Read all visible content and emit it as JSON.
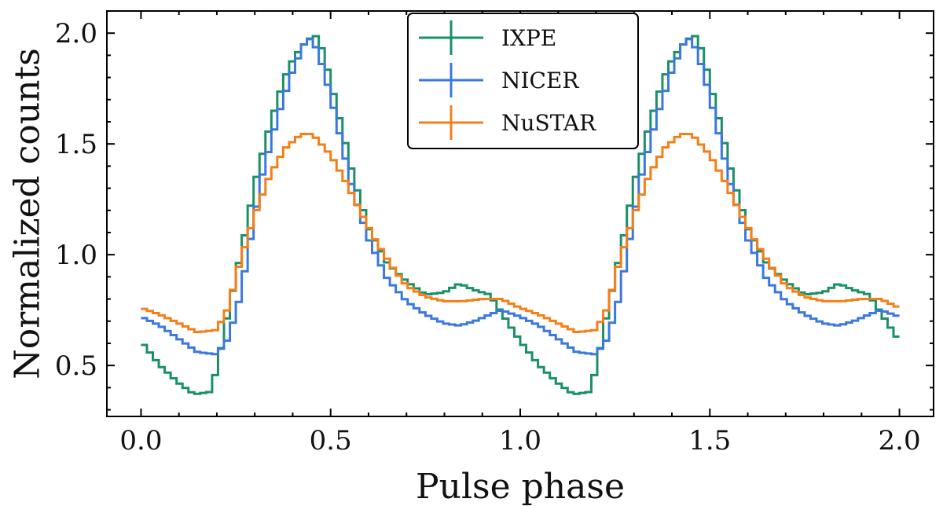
{
  "chart_data": {
    "type": "line",
    "drawstyle": "steps",
    "xlabel": "Pulse phase",
    "ylabel": "Normalized counts",
    "xlim": [
      -0.09,
      2.09
    ],
    "ylim": [
      0.27,
      2.1
    ],
    "xticks": [
      0.0,
      0.5,
      1.0,
      1.5,
      2.0
    ],
    "xtick_labels": [
      "0.0",
      "0.5",
      "1.0",
      "1.5",
      "2.0"
    ],
    "yticks": [
      0.5,
      1.0,
      1.5,
      2.0
    ],
    "ytick_labels": [
      "0.5",
      "1.0",
      "1.5",
      "2.0"
    ],
    "grid": false,
    "legend_position": "top-center",
    "period": 1.0,
    "x_start": 0.0,
    "x_end": 2.0,
    "bins_per_period": 64,
    "series": [
      {
        "name": "IXPE",
        "color": "#1a9068",
        "phase": [
          0.0,
          0.05,
          0.1,
          0.14,
          0.18,
          0.2,
          0.22,
          0.25,
          0.28,
          0.3,
          0.33,
          0.36,
          0.39,
          0.42,
          0.44,
          0.46,
          0.48,
          0.5,
          0.53,
          0.56,
          0.6,
          0.65,
          0.7,
          0.75,
          0.8,
          0.84,
          0.88,
          0.92,
          0.95,
          1.0
        ],
        "counts": [
          0.61,
          0.5,
          0.42,
          0.37,
          0.38,
          0.48,
          0.66,
          0.9,
          1.14,
          1.32,
          1.52,
          1.7,
          1.85,
          1.93,
          1.97,
          1.99,
          1.92,
          1.78,
          1.57,
          1.35,
          1.12,
          0.96,
          0.88,
          0.82,
          0.83,
          0.87,
          0.84,
          0.82,
          0.74,
          0.61
        ]
      },
      {
        "name": "NICER",
        "color": "#3b78dc",
        "phase": [
          0.0,
          0.05,
          0.1,
          0.15,
          0.2,
          0.23,
          0.26,
          0.29,
          0.32,
          0.36,
          0.4,
          0.43,
          0.45,
          0.47,
          0.5,
          0.53,
          0.56,
          0.6,
          0.65,
          0.7,
          0.75,
          0.8,
          0.84,
          0.88,
          0.92,
          0.95,
          1.0
        ],
        "counts": [
          0.72,
          0.68,
          0.62,
          0.56,
          0.55,
          0.62,
          0.8,
          1.08,
          1.36,
          1.62,
          1.83,
          1.95,
          1.98,
          1.9,
          1.72,
          1.5,
          1.28,
          1.07,
          0.89,
          0.79,
          0.73,
          0.69,
          0.68,
          0.7,
          0.73,
          0.75,
          0.72
        ]
      },
      {
        "name": "NuSTAR",
        "color": "#f57f17",
        "phase": [
          0.0,
          0.05,
          0.1,
          0.15,
          0.2,
          0.23,
          0.26,
          0.3,
          0.34,
          0.38,
          0.42,
          0.44,
          0.46,
          0.5,
          0.54,
          0.58,
          0.62,
          0.66,
          0.7,
          0.75,
          0.8,
          0.85,
          0.9,
          0.95,
          1.0
        ],
        "counts": [
          0.76,
          0.73,
          0.69,
          0.65,
          0.66,
          0.76,
          0.96,
          1.18,
          1.36,
          1.48,
          1.54,
          1.55,
          1.53,
          1.45,
          1.33,
          1.19,
          1.06,
          0.95,
          0.86,
          0.81,
          0.79,
          0.79,
          0.8,
          0.8,
          0.76
        ]
      }
    ]
  }
}
